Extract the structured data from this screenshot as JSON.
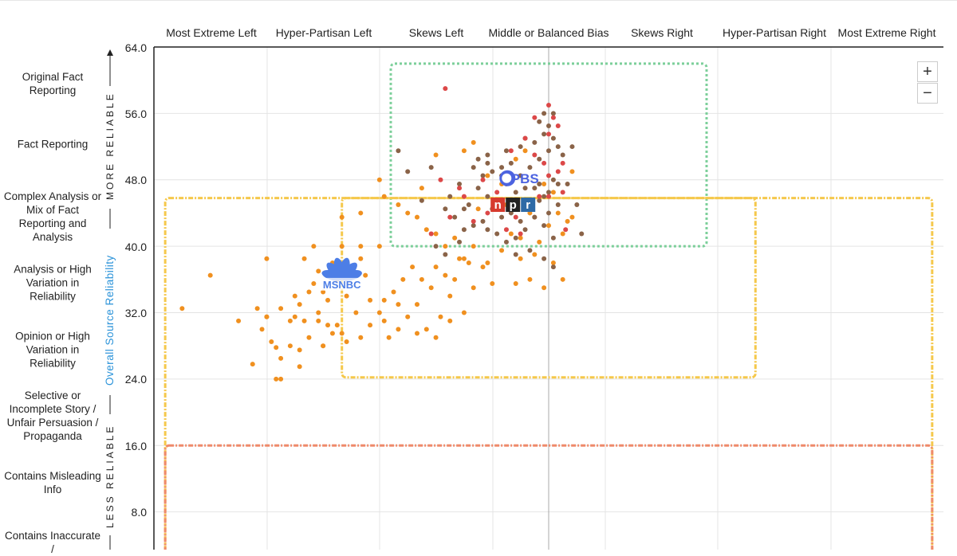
{
  "columns": [
    "Most Extreme Left",
    "Hyper-Partisan Left",
    "Skews Left",
    "Middle or Balanced Bias",
    "Skews Right",
    "Hyper-Partisan Right",
    "Most Extreme Right"
  ],
  "rows": [
    {
      "label": "Original Fact Reporting"
    },
    {
      "label": "Fact Reporting"
    },
    {
      "label": "Complex Analysis or Mix of Fact Reporting and Analysis"
    },
    {
      "label": "Analysis or High Variation in Reliability"
    },
    {
      "label": "Opinion or High Variation in Reliability"
    },
    {
      "label": "Selective or Incomplete Story / Unfair Persuasion / Propaganda"
    },
    {
      "label": "Contains Misleading Info"
    },
    {
      "label": "Contains Inaccurate /"
    }
  ],
  "side": {
    "more_reliable": "MORE RELIABLE",
    "less_reliable": "LESS RELIABLE",
    "axis_title": "Overall Source Reliability"
  },
  "zoom": {
    "plus": "+",
    "minus": "−"
  },
  "colors": {
    "orange": "#f0901f",
    "brown": "#8a6348",
    "red": "#dc4848",
    "green": "#7ccf9a",
    "yellow": "#f5c84b",
    "salmon": "#ef8a6a",
    "blue": "#2b93d9",
    "npr_red": "#d63a2e",
    "npr_black": "#222222",
    "npr_blue": "#2e6aa6",
    "msnbc_blue": "#4d7ee6",
    "pbs_blue": "#4c63e0"
  },
  "logos": [
    {
      "name": "PBS",
      "label": "PBS",
      "x": -3.2,
      "y": 48.0
    },
    {
      "name": "NPR",
      "letters": [
        "n",
        "p",
        "r"
      ],
      "x": -3.8,
      "y": 45.0
    },
    {
      "name": "MSNBC",
      "label": "MSNBC",
      "x": -22.0,
      "y": 35.8
    }
  ],
  "chart_data": {
    "type": "scatter",
    "xlabel": "",
    "ylabel": "Overall Source Reliability",
    "xlim": [
      -42,
      42
    ],
    "ylim": [
      0,
      64
    ],
    "yticks": [
      8.0,
      16.0,
      24.0,
      32.0,
      40.0,
      48.0,
      56.0,
      64.0
    ],
    "grid": true,
    "regions": [
      {
        "color": "green",
        "x": [
          -16.8,
          16.8
        ],
        "y": [
          40.0,
          62.0
        ]
      },
      {
        "color": "yellow",
        "x": [
          -40.8,
          40.8
        ],
        "y": [
          0,
          45.8
        ]
      },
      {
        "color": "yellow",
        "x": [
          -22.0,
          22.0
        ],
        "y": [
          24.2,
          45.8
        ]
      },
      {
        "color": "salmon",
        "x": [
          -40.8,
          40.8
        ],
        "y": [
          0,
          16.0
        ]
      }
    ],
    "series": [
      {
        "color": "orange",
        "points": [
          [
            -26.0,
            38.5
          ],
          [
            -24.5,
            37.0
          ],
          [
            -23.0,
            38.0
          ],
          [
            -25.0,
            35.5
          ],
          [
            -24.0,
            34.5
          ],
          [
            -22.5,
            36.0
          ],
          [
            -21.0,
            37.0
          ],
          [
            -20.0,
            38.5
          ],
          [
            -19.5,
            36.5
          ],
          [
            -21.5,
            34.0
          ],
          [
            -23.5,
            33.5
          ],
          [
            -25.5,
            34.5
          ],
          [
            -26.5,
            33.0
          ],
          [
            -27.0,
            31.5
          ],
          [
            -28.5,
            32.5
          ],
          [
            -27.5,
            31.0
          ],
          [
            -26.0,
            31.0
          ],
          [
            -24.5,
            31.0
          ],
          [
            -23.5,
            30.5
          ],
          [
            -23.0,
            29.5
          ],
          [
            -24.0,
            28.0
          ],
          [
            -22.0,
            29.5
          ],
          [
            -21.5,
            28.5
          ],
          [
            -20.0,
            29.0
          ],
          [
            -19.0,
            30.5
          ],
          [
            -18.0,
            32.0
          ],
          [
            -17.5,
            33.5
          ],
          [
            -16.5,
            34.5
          ],
          [
            -16.0,
            33.0
          ],
          [
            -15.5,
            36.0
          ],
          [
            -14.5,
            37.5
          ],
          [
            -13.5,
            36.0
          ],
          [
            -12.0,
            37.5
          ],
          [
            -12.5,
            35.0
          ],
          [
            -14.0,
            33.0
          ],
          [
            -15.0,
            31.5
          ],
          [
            -13.0,
            30.0
          ],
          [
            -11.5,
            31.5
          ],
          [
            -10.5,
            31.0
          ],
          [
            -12.0,
            29.0
          ],
          [
            -14.0,
            29.5
          ],
          [
            -16.0,
            30.0
          ],
          [
            -17.0,
            29.0
          ],
          [
            -10.0,
            36.0
          ],
          [
            -9.0,
            38.5
          ],
          [
            -8.5,
            38.0
          ],
          [
            -7.0,
            37.5
          ],
          [
            -6.0,
            35.5
          ],
          [
            -5.0,
            39.5
          ],
          [
            -4.0,
            41.5
          ],
          [
            -3.0,
            38.5
          ],
          [
            -2.0,
            36.0
          ],
          [
            -1.0,
            40.5
          ],
          [
            0.0,
            42.5
          ],
          [
            1.0,
            44.0
          ],
          [
            0.5,
            46.5
          ],
          [
            -0.5,
            47.5
          ],
          [
            2.0,
            43.0
          ],
          [
            -12.0,
            41.5
          ],
          [
            -10.0,
            41.0
          ],
          [
            -11.0,
            40.0
          ],
          [
            -13.0,
            42.0
          ],
          [
            -14.0,
            43.5
          ],
          [
            -16.0,
            45.0
          ],
          [
            -17.5,
            46.0
          ],
          [
            -13.5,
            47.0
          ],
          [
            -18.0,
            48.0
          ],
          [
            -15.0,
            44.0
          ],
          [
            -20.0,
            44.0
          ],
          [
            -22.0,
            43.5
          ],
          [
            -5.0,
            47.5
          ],
          [
            -3.5,
            50.5
          ],
          [
            -2.5,
            51.5
          ],
          [
            -12.0,
            51.0
          ],
          [
            -9.0,
            51.5
          ],
          [
            -8.0,
            52.5
          ],
          [
            -6.5,
            48.5
          ],
          [
            -4.5,
            45.0
          ],
          [
            -7.5,
            44.5
          ],
          [
            -2.0,
            44.0
          ],
          [
            1.5,
            41.5
          ],
          [
            2.5,
            43.5
          ],
          [
            -1.5,
            39.0
          ],
          [
            -9.5,
            38.5
          ],
          [
            -11.0,
            36.5
          ],
          [
            -10.5,
            34.0
          ],
          [
            -9.0,
            32.0
          ],
          [
            -8.0,
            35.0
          ],
          [
            -17.5,
            31.0
          ],
          [
            -19.0,
            33.5
          ],
          [
            -20.5,
            32.0
          ],
          [
            -22.5,
            30.5
          ],
          [
            -24.5,
            32.0
          ],
          [
            -25.5,
            29.0
          ],
          [
            -26.5,
            27.5
          ],
          [
            -27.5,
            28.0
          ],
          [
            -28.5,
            26.5
          ],
          [
            -29.0,
            24.0
          ],
          [
            -28.5,
            24.0
          ],
          [
            -29.5,
            28.5
          ],
          [
            -29.0,
            27.8
          ],
          [
            -30.0,
            31.5
          ],
          [
            -31.0,
            32.5
          ],
          [
            -33.0,
            31.0
          ],
          [
            -30.0,
            31.5
          ],
          [
            -30.5,
            30.0
          ],
          [
            -31.5,
            25.8
          ],
          [
            -39.0,
            32.5
          ],
          [
            -36.0,
            36.5
          ],
          [
            -30.0,
            38.5
          ],
          [
            -24.0,
            28.0
          ],
          [
            -26.5,
            25.5
          ],
          [
            -27.0,
            34.0
          ],
          [
            -25.0,
            40.0
          ],
          [
            -22.0,
            40.0
          ],
          [
            -20.0,
            40.0
          ],
          [
            -18.0,
            40.0
          ],
          [
            1.5,
            36.0
          ],
          [
            -0.5,
            35.0
          ],
          [
            -3.5,
            35.5
          ],
          [
            -6.5,
            38.0
          ],
          [
            -8.0,
            40.0
          ],
          [
            -3.0,
            41.0
          ],
          [
            0.5,
            38.0
          ],
          [
            -1.5,
            43.5
          ],
          [
            2.5,
            49.0
          ]
        ]
      },
      {
        "color": "brown",
        "points": [
          [
            -9.5,
            47.5
          ],
          [
            -8.5,
            45.0
          ],
          [
            -7.5,
            47.0
          ],
          [
            -6.5,
            46.0
          ],
          [
            -5.5,
            45.5
          ],
          [
            -4.5,
            47.5
          ],
          [
            -3.5,
            46.5
          ],
          [
            -2.5,
            45.0
          ],
          [
            -1.5,
            47.0
          ],
          [
            -0.5,
            46.0
          ],
          [
            0.5,
            48.0
          ],
          [
            -6.0,
            44.5
          ],
          [
            -5.0,
            43.5
          ],
          [
            -4.0,
            44.0
          ],
          [
            -3.0,
            43.0
          ],
          [
            -2.0,
            44.5
          ],
          [
            -1.0,
            45.5
          ],
          [
            0.0,
            44.0
          ],
          [
            1.0,
            45.0
          ],
          [
            -7.0,
            43.0
          ],
          [
            -8.0,
            42.5
          ],
          [
            -9.0,
            42.0
          ],
          [
            -10.0,
            43.5
          ],
          [
            -6.5,
            42.0
          ],
          [
            -5.5,
            41.5
          ],
          [
            -4.5,
            40.5
          ],
          [
            -3.5,
            41.0
          ],
          [
            -2.5,
            42.0
          ],
          [
            -1.5,
            43.5
          ],
          [
            -0.5,
            42.5
          ],
          [
            0.5,
            41.0
          ],
          [
            -11.0,
            44.5
          ],
          [
            -10.5,
            46.0
          ],
          [
            -9.0,
            44.5
          ],
          [
            -3.0,
            48.5
          ],
          [
            -2.0,
            49.5
          ],
          [
            -1.0,
            50.5
          ],
          [
            0.0,
            51.5
          ],
          [
            -4.0,
            50.0
          ],
          [
            -5.0,
            49.5
          ],
          [
            -6.0,
            49.0
          ],
          [
            -7.0,
            48.5
          ],
          [
            -8.0,
            49.5
          ],
          [
            -1.5,
            52.5
          ],
          [
            -0.5,
            53.5
          ],
          [
            -1.0,
            55.0
          ],
          [
            -0.5,
            56.0
          ],
          [
            0.0,
            54.5
          ],
          [
            0.5,
            53.0
          ],
          [
            1.0,
            52.0
          ],
          [
            -3.0,
            52.0
          ],
          [
            -4.5,
            51.5
          ],
          [
            -6.5,
            51.0
          ],
          [
            -7.5,
            50.5
          ],
          [
            -2.5,
            53.0
          ],
          [
            0.5,
            56.0
          ],
          [
            1.5,
            51.0
          ],
          [
            2.5,
            52.0
          ],
          [
            3.5,
            41.5
          ],
          [
            3.0,
            45.0
          ],
          [
            2.0,
            47.5
          ],
          [
            -0.5,
            38.5
          ],
          [
            0.5,
            37.5
          ],
          [
            -2.0,
            39.5
          ],
          [
            -12.0,
            40.0
          ],
          [
            -11.0,
            39.0
          ],
          [
            -13.5,
            45.5
          ],
          [
            -15.0,
            49.0
          ],
          [
            -12.5,
            49.5
          ],
          [
            -16.0,
            51.5
          ],
          [
            -3.5,
            39.0
          ],
          [
            1.0,
            47.5
          ],
          [
            -1.0,
            47.5
          ],
          [
            0.0,
            46.5
          ],
          [
            -2.5,
            47.0
          ],
          [
            -5.0,
            48.5
          ],
          [
            -9.5,
            40.5
          ],
          [
            -6.5,
            50.0
          ]
        ]
      },
      {
        "color": "red",
        "points": [
          [
            -11.0,
            59.0
          ],
          [
            -4.0,
            51.5
          ],
          [
            -2.5,
            53.0
          ],
          [
            -1.5,
            51.0
          ],
          [
            0.0,
            53.5
          ],
          [
            0.5,
            55.5
          ],
          [
            1.0,
            54.5
          ],
          [
            1.5,
            50.0
          ],
          [
            1.0,
            49.0
          ],
          [
            0.0,
            48.5
          ],
          [
            -1.0,
            46.0
          ],
          [
            -2.0,
            44.5
          ],
          [
            -3.5,
            43.5
          ],
          [
            -5.5,
            46.5
          ],
          [
            -6.5,
            44.0
          ],
          [
            -8.0,
            43.0
          ],
          [
            -9.0,
            46.0
          ],
          [
            -10.5,
            43.5
          ],
          [
            -12.5,
            41.5
          ],
          [
            -11.5,
            48.0
          ],
          [
            -7.0,
            48.0
          ],
          [
            -4.5,
            42.0
          ],
          [
            -3.0,
            41.5
          ],
          [
            0.0,
            46.0
          ],
          [
            1.5,
            46.5
          ],
          [
            1.8,
            42.0
          ],
          [
            -9.5,
            47.0
          ],
          [
            -0.5,
            50.0
          ],
          [
            -1.5,
            55.5
          ],
          [
            0.0,
            57.0
          ]
        ]
      }
    ]
  }
}
